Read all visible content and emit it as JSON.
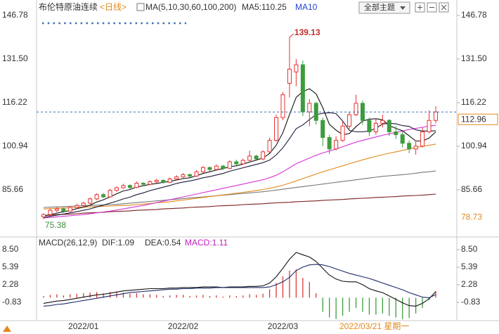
{
  "header": {
    "title": "布伦特原油连续",
    "period": "<日线>",
    "ma_params": "MA(5,10,30,60,100,200)",
    "ma5": "MA5:110.25",
    "ma10": "MA10",
    "theme_button": "全部主题"
  },
  "chart_data": [
    {
      "type": "candlestick",
      "categories": [
        null,
        null,
        null,
        null,
        null,
        null,
        "2022/01",
        null,
        null,
        null,
        null,
        null,
        null,
        null,
        null,
        null,
        null,
        null,
        null,
        null,
        null,
        "2022/02",
        null,
        null,
        null,
        null,
        null,
        null,
        null,
        null,
        null,
        null,
        null,
        null,
        null,
        null,
        "2022/03",
        null,
        null,
        null,
        null,
        null,
        null,
        null,
        null,
        null,
        null,
        null,
        null,
        null,
        null,
        null,
        null,
        null,
        null,
        null,
        null,
        null,
        null,
        null
      ],
      "candles": [
        [
          76.2,
          77.5,
          75.38,
          77.0
        ],
        [
          77.0,
          79.0,
          76.5,
          78.5
        ],
        [
          78.5,
          79.6,
          77.8,
          79.0
        ],
        [
          79.0,
          79.4,
          77.6,
          78.2
        ],
        [
          78.2,
          80.0,
          78.0,
          79.5
        ],
        [
          79.5,
          80.8,
          79.0,
          80.2
        ],
        [
          80.2,
          81.5,
          79.8,
          81.0
        ],
        [
          81.0,
          83.0,
          80.6,
          82.5
        ],
        [
          82.5,
          84.5,
          82.0,
          84.0
        ],
        [
          84.0,
          84.6,
          82.8,
          83.2
        ],
        [
          83.2,
          86.0,
          83.0,
          85.5
        ],
        [
          85.5,
          86.9,
          85.0,
          86.4
        ],
        [
          86.4,
          87.8,
          86.0,
          87.2
        ],
        [
          87.2,
          87.6,
          86.0,
          86.5
        ],
        [
          86.5,
          88.6,
          86.2,
          88.0
        ],
        [
          88.0,
          88.4,
          87.0,
          87.6
        ],
        [
          87.6,
          89.0,
          87.2,
          88.5
        ],
        [
          88.5,
          89.6,
          88.0,
          89.0
        ],
        [
          89.0,
          89.3,
          87.8,
          88.3
        ],
        [
          88.3,
          90.0,
          88.0,
          89.5
        ],
        [
          89.5,
          90.8,
          89.0,
          90.2
        ],
        [
          90.2,
          91.6,
          89.8,
          91.0
        ],
        [
          91.0,
          91.4,
          90.0,
          90.5
        ],
        [
          90.5,
          92.6,
          90.2,
          92.0
        ],
        [
          92.0,
          94.0,
          91.6,
          93.5
        ],
        [
          93.5,
          93.9,
          92.2,
          92.8
        ],
        [
          92.8,
          94.6,
          92.5,
          94.0
        ],
        [
          94.0,
          94.4,
          92.6,
          93.2
        ],
        [
          93.2,
          96.0,
          93.0,
          95.5
        ],
        [
          95.5,
          96.2,
          94.2,
          94.8
        ],
        [
          94.8,
          96.6,
          94.5,
          96.0
        ],
        [
          96.0,
          99.4,
          95.6,
          97.5
        ],
        [
          97.5,
          98.0,
          95.8,
          96.5
        ],
        [
          96.5,
          99.5,
          96.0,
          99.0
        ],
        [
          99.0,
          104.0,
          98.5,
          103.0
        ],
        [
          103.0,
          112.0,
          102.5,
          111.0
        ],
        [
          111.0,
          120.0,
          110.0,
          119.0
        ],
        [
          123.0,
          139.13,
          118.0,
          127.98
        ],
        [
          127.0,
          131.5,
          122.0,
          129.5
        ],
        [
          129.5,
          131.0,
          111.5,
          113.0
        ],
        [
          113.0,
          117.5,
          108.0,
          116.0
        ],
        [
          116.0,
          116.5,
          108.5,
          110.0
        ],
        [
          110.0,
          111.0,
          101.0,
          104.0
        ],
        [
          104.0,
          105.0,
          98.2,
          100.0
        ],
        [
          100.0,
          104.5,
          99.5,
          103.0
        ],
        [
          103.0,
          109.5,
          102.5,
          108.0
        ],
        [
          108.0,
          113.0,
          107.0,
          112.0
        ],
        [
          112.0,
          119.0,
          111.5,
          116.0
        ],
        [
          116.0,
          117.0,
          108.5,
          110.0
        ],
        [
          110.0,
          111.0,
          104.5,
          106.0
        ],
        [
          106.0,
          110.5,
          105.0,
          109.0
        ],
        [
          109.0,
          112.0,
          107.5,
          110.0
        ],
        [
          110.0,
          110.5,
          104.5,
          106.0
        ],
        [
          106.0,
          108.0,
          103.5,
          105.0
        ],
        [
          105.0,
          106.0,
          100.5,
          102.0
        ],
        [
          102.0,
          103.0,
          98.5,
          100.0
        ],
        [
          100.0,
          103.0,
          98.0,
          101.0
        ],
        [
          101.0,
          107.5,
          100.5,
          106.0
        ],
        [
          106.0,
          113.5,
          105.5,
          110.0
        ],
        [
          110.0,
          115.0,
          109.0,
          112.96
        ]
      ],
      "up_color": "#e8312f",
      "down_color": "#3d9c3d",
      "series": [
        {
          "color": "#7a1f1f",
          "values": [
            76.7,
            76.8,
            77.0,
            77.1,
            77.2,
            77.3,
            77.5,
            77.6,
            77.7,
            77.8,
            78.0,
            78.1,
            78.2,
            78.3,
            78.5,
            78.6,
            78.7,
            78.8,
            79.0,
            79.1,
            79.2,
            79.3,
            79.5,
            79.6,
            79.7,
            79.8,
            80.0,
            80.1,
            80.2,
            80.3,
            80.5,
            80.6,
            80.7,
            80.8,
            81.0,
            81.1,
            81.2,
            81.3,
            81.5,
            81.6,
            81.7,
            81.8,
            82.0,
            82.1,
            82.2,
            82.3,
            82.5,
            82.6,
            82.7,
            82.8,
            83.0,
            83.1,
            83.2,
            83.3,
            83.5,
            83.6,
            83.7,
            83.8,
            84.0,
            84.2
          ]
        },
        {
          "color": "#777777",
          "values": [
            79.5,
            79.6,
            79.7,
            79.8,
            79.9,
            80.0,
            80.1,
            80.2,
            80.3,
            80.4,
            80.5,
            80.6,
            80.8,
            81.0,
            81.2,
            81.4,
            81.6,
            81.8,
            82.0,
            82.2,
            82.4,
            82.6,
            82.8,
            83.0,
            83.2,
            83.4,
            83.6,
            83.8,
            84.0,
            84.2,
            84.4,
            84.6,
            84.8,
            85.0,
            85.3,
            85.6,
            85.9,
            86.2,
            86.5,
            86.8,
            87.1,
            87.4,
            87.7,
            88.0,
            88.3,
            88.6,
            88.9,
            89.2,
            89.5,
            89.8,
            90.1,
            90.4,
            90.6,
            90.8,
            91.0,
            91.2,
            91.5,
            91.8,
            92.0,
            92.3
          ]
        },
        {
          "color": "#e08a1e",
          "values": [
            79.0,
            79.1,
            79.2,
            79.3,
            79.4,
            79.5,
            79.6,
            79.7,
            79.8,
            79.9,
            80.0,
            80.1,
            80.2,
            80.3,
            80.5,
            80.7,
            80.9,
            81.1,
            81.3,
            81.5,
            81.8,
            82.1,
            82.4,
            82.7,
            83.0,
            83.3,
            83.6,
            83.9,
            84.2,
            84.5,
            84.8,
            85.1,
            85.4,
            85.8,
            86.2,
            86.7,
            87.3,
            88.0,
            88.8,
            89.6,
            90.4,
            91.2,
            92.0,
            92.7,
            93.4,
            94.1,
            94.8,
            95.5,
            96.2,
            96.8,
            97.4,
            98.0,
            98.5,
            99.0,
            99.5,
            100.0,
            100.5,
            100.9,
            101.3,
            101.7
          ]
        },
        {
          "color": "#d633d6",
          "values": [
            75.8,
            76.0,
            76.2,
            76.4,
            76.6,
            76.8,
            77.0,
            77.3,
            77.6,
            77.9,
            78.2,
            78.6,
            79.0,
            79.4,
            79.8,
            80.2,
            80.7,
            81.2,
            81.7,
            82.2,
            82.7,
            83.2,
            83.7,
            84.2,
            84.7,
            85.2,
            85.7,
            86.2,
            86.7,
            87.2,
            87.7,
            88.2,
            88.7,
            89.2,
            89.9,
            90.8,
            92.0,
            93.4,
            94.8,
            95.8,
            96.8,
            97.8,
            98.6,
            99.3,
            100.0,
            100.8,
            101.6,
            102.4,
            103.0,
            103.6,
            104.2,
            104.8,
            105.3,
            105.8,
            106.3,
            106.8,
            107.2,
            107.6,
            108.0,
            108.3
          ]
        },
        {
          "color": "#1a1a3a",
          "values": [
            76.0,
            76.4,
            76.8,
            77.2,
            77.6,
            78.0,
            78.5,
            79.0,
            79.7,
            80.3,
            81.0,
            81.7,
            82.5,
            83.1,
            84.0,
            84.6,
            85.4,
            86.0,
            86.6,
            87.2,
            87.9,
            88.4,
            88.8,
            89.3,
            89.9,
            90.3,
            90.9,
            91.4,
            92.2,
            92.8,
            93.4,
            94.0,
            94.6,
            95.2,
            96.1,
            97.9,
            100.4,
            103.6,
            107.1,
            108.4,
            110.3,
            112.0,
            112.5,
            112.7,
            112.4,
            109.8,
            106.5,
            106.0,
            106.0,
            106.3,
            107.3,
            108.7,
            109.0,
            108.8,
            108.2,
            107.9,
            106.7,
            106.3,
            106.3,
            106.4
          ]
        },
        {
          "color": "#111111",
          "values": [
            76.5,
            77.0,
            77.5,
            78.0,
            78.4,
            79.1,
            79.6,
            80.3,
            81.4,
            82.2,
            83.2,
            84.3,
            85.3,
            85.8,
            86.7,
            87.1,
            87.6,
            87.9,
            88.3,
            88.6,
            89.1,
            89.6,
            89.9,
            90.6,
            91.4,
            92.0,
            92.6,
            93.1,
            93.8,
            94.1,
            94.7,
            95.4,
            96.1,
            96.8,
            98.4,
            101.3,
            105.7,
            112.0,
            118.1,
            120.1,
            121.1,
            119.3,
            114.5,
            108.6,
            106.6,
            105.0,
            105.4,
            107.8,
            109.8,
            110.4,
            110.6,
            110.2,
            108.2,
            107.2,
            106.4,
            104.6,
            102.8,
            102.8,
            103.8,
            106.0
          ]
        }
      ],
      "ylim": [
        70.39,
        148.75
      ],
      "yticks": [
        146.78,
        {
          "value": 131.5,
          "label": "131.50"
        },
        116.22,
        100.94,
        85.66
      ],
      "current_price": 112.96,
      "high_annotation": 139.13,
      "low_annotation": 75.38,
      "side_label": 78.73,
      "cursor_label": "2022/03/21 星期一"
    },
    {
      "type": "macd",
      "title": "MACD(26,12,9)",
      "dif_label": "DIF:1.09",
      "dea_label": "DEA:0.54",
      "macd_label": "MACD:1.11",
      "histogram": [
        0.3,
        0.5,
        0.6,
        0.4,
        0.6,
        0.7,
        0.8,
        0.9,
        1.0,
        0.8,
        1.0,
        1.0,
        0.9,
        0.7,
        0.8,
        0.6,
        0.6,
        0.5,
        0.3,
        0.4,
        0.5,
        0.5,
        0.3,
        0.4,
        0.5,
        0.3,
        0.4,
        0.2,
        0.4,
        0.3,
        0.4,
        0.6,
        0.5,
        0.7,
        1.5,
        2.6,
        3.8,
        4.8,
        5.0,
        3.5,
        2.8,
        0.8,
        -2.5,
        -3.5,
        -3.8,
        -3.2,
        -2.5,
        -1.8,
        -2.5,
        -3.0,
        -3.0,
        -2.8,
        -3.2,
        -3.5,
        -3.8,
        -3.6,
        -2.8,
        -1.8,
        -0.4,
        1.11
      ],
      "up_color": "#d83a3a",
      "down_color": "#3d9c3d",
      "series": [
        {
          "color": "#111111",
          "values": [
            -1.0,
            -0.8,
            -0.6,
            -0.5,
            -0.3,
            -0.1,
            0.1,
            0.3,
            0.5,
            0.6,
            0.8,
            1.0,
            1.2,
            1.3,
            1.4,
            1.5,
            1.6,
            1.6,
            1.6,
            1.7,
            1.7,
            1.8,
            1.8,
            1.8,
            1.9,
            1.9,
            1.9,
            1.8,
            1.9,
            1.9,
            1.9,
            2.0,
            2.0,
            2.1,
            2.6,
            3.7,
            5.2,
            6.8,
            8.0,
            7.6,
            7.2,
            6.4,
            5.2,
            4.0,
            3.3,
            2.9,
            2.8,
            2.8,
            2.3,
            1.6,
            1.2,
            0.9,
            0.3,
            -0.3,
            -0.9,
            -1.4,
            -1.5,
            -1.0,
            -0.2,
            1.09
          ]
        },
        {
          "color": "#1f2a6b",
          "values": [
            -1.5,
            -1.4,
            -1.2,
            -1.1,
            -0.9,
            -0.7,
            -0.5,
            -0.3,
            -0.1,
            0.1,
            0.3,
            0.5,
            0.7,
            0.9,
            1.0,
            1.1,
            1.2,
            1.3,
            1.4,
            1.5,
            1.5,
            1.6,
            1.6,
            1.7,
            1.7,
            1.7,
            1.8,
            1.8,
            1.8,
            1.8,
            1.8,
            1.8,
            1.8,
            1.8,
            1.9,
            2.3,
            2.8,
            3.6,
            4.8,
            5.4,
            5.8,
            5.9,
            5.8,
            5.5,
            5.1,
            4.7,
            4.3,
            4.0,
            3.7,
            3.4,
            3.0,
            2.6,
            2.2,
            1.8,
            1.4,
            0.9,
            0.5,
            0.1,
            0.0,
            0.54
          ]
        }
      ],
      "ylim": [
        -4.06,
        10.12
      ],
      "yticks": [
        {
          "value": 8.5,
          "label": "8.50"
        },
        5.39,
        2.28,
        -0.83
      ]
    }
  ]
}
